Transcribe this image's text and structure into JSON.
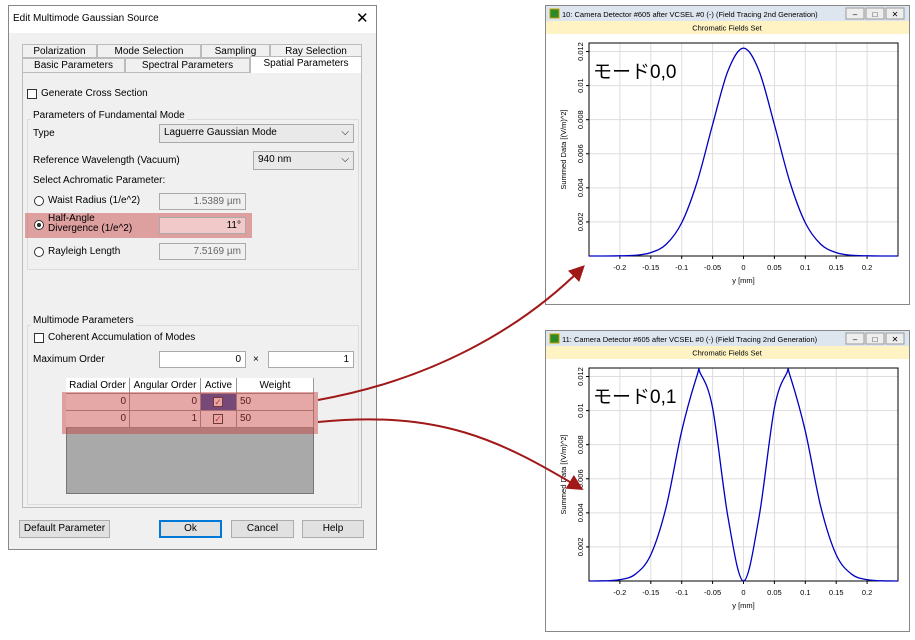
{
  "dialog": {
    "title": "Edit Multimode Gaussian Source",
    "tabs_row1": [
      "Polarization",
      "Mode Selection",
      "Sampling",
      "Ray Selection"
    ],
    "tabs_row2": [
      "Basic Parameters",
      "Spectral Parameters",
      "Spatial Parameters"
    ],
    "generate_cross_section": "Generate Cross Section",
    "fundamental": {
      "legend": "Parameters of Fundamental Mode",
      "type_label": "Type",
      "type_value": "Laguerre Gaussian Mode",
      "wavelength_label": "Reference Wavelength (Vacuum)",
      "wavelength_value": "940 nm",
      "select_label": "Select Achromatic Parameter:",
      "options": [
        {
          "label": "Waist Radius (1/e^2)",
          "value": "1.5389 µm"
        },
        {
          "label": "Half-Angle Divergence (1/e^2)",
          "value": "11°"
        },
        {
          "label": "Rayleigh Length",
          "value": "7.5169 µm"
        }
      ]
    },
    "multimode": {
      "legend": "Multimode Parameters",
      "coherent": "Coherent Accumulation of Modes",
      "max_order_label": "Maximum Order",
      "max_order": [
        "0",
        "1"
      ],
      "times": "×",
      "table": {
        "columns": [
          "Radial Order",
          "Angular Order",
          "Active",
          "Weight"
        ],
        "rows": [
          [
            "0",
            "0",
            "50"
          ],
          [
            "0",
            "1",
            "50"
          ]
        ]
      }
    },
    "buttons": [
      "Default Parameter",
      "Ok",
      "Cancel",
      "Help"
    ]
  },
  "windows": [
    {
      "title": "10: Camera Detector #605 after VCSEL #0 (-) (Field Tracing 2nd Generation)",
      "subtitle": "Chromatic Fields Set",
      "annotation": "モード0,0",
      "plot": {
        "type": "line",
        "x_label": "y [mm]",
        "y_label": "Summed Data [(V/m)^2]",
        "color": "#0000c0",
        "grid": true,
        "xlim": [
          -0.25,
          0.25
        ],
        "ylim": [
          0,
          0.0125
        ],
        "xticks": [
          -0.2,
          -0.15,
          -0.1,
          -0.05,
          0,
          0.05,
          0.1,
          0.15,
          0.2
        ],
        "yticks": [
          0.002,
          0.004,
          0.006,
          0.008,
          0.01,
          0.012
        ],
        "x": [
          -0.25,
          -0.225,
          -0.2,
          -0.175,
          -0.15,
          -0.125,
          -0.1,
          -0.075,
          -0.05,
          -0.025,
          0,
          0.025,
          0.05,
          0.075,
          0.1,
          0.125,
          0.15,
          0.175,
          0.2,
          0.225,
          0.25
        ],
        "values": [
          0,
          0,
          1e-05,
          4e-05,
          0.0002,
          0.00069,
          0.00195,
          0.00435,
          0.00771,
          0.01088,
          0.0122,
          0.01088,
          0.00771,
          0.00435,
          0.00195,
          0.00069,
          0.0002,
          4e-05,
          1e-05,
          0,
          0
        ]
      }
    },
    {
      "title": "11: Camera Detector #605 after VCSEL #0 (-) (Field Tracing 2nd Generation)",
      "subtitle": "Chromatic Fields Set",
      "annotation": "モード0,1",
      "plot": {
        "type": "line",
        "x_label": "y [mm]",
        "y_label": "Summed Data [(V/m)^2]",
        "color": "#0000c0",
        "grid": true,
        "xlim": [
          -0.25,
          0.25
        ],
        "ylim": [
          0,
          0.0125
        ],
        "xticks": [
          -0.2,
          -0.15,
          -0.1,
          -0.05,
          0,
          0.05,
          0.1,
          0.15,
          0.2
        ],
        "yticks": [
          0.002,
          0.004,
          0.006,
          0.008,
          0.01,
          0.012
        ],
        "x": [
          -0.25,
          -0.225,
          -0.2,
          -0.175,
          -0.15,
          -0.125,
          -0.1,
          -0.075,
          -0.07,
          -0.05,
          -0.025,
          0,
          0.025,
          0.05,
          0.07,
          0.075,
          0.1,
          0.125,
          0.15,
          0.175,
          0.2,
          0.225,
          0.25
        ],
        "values": [
          0,
          1e-05,
          8e-05,
          0.0004,
          0.00154,
          0.00436,
          0.0088,
          0.01208,
          0.0122,
          0.01016,
          0.00372,
          0,
          0.00372,
          0.01016,
          0.0122,
          0.01208,
          0.0088,
          0.00436,
          0.00154,
          0.0004,
          8e-05,
          1e-05,
          0
        ]
      }
    }
  ]
}
